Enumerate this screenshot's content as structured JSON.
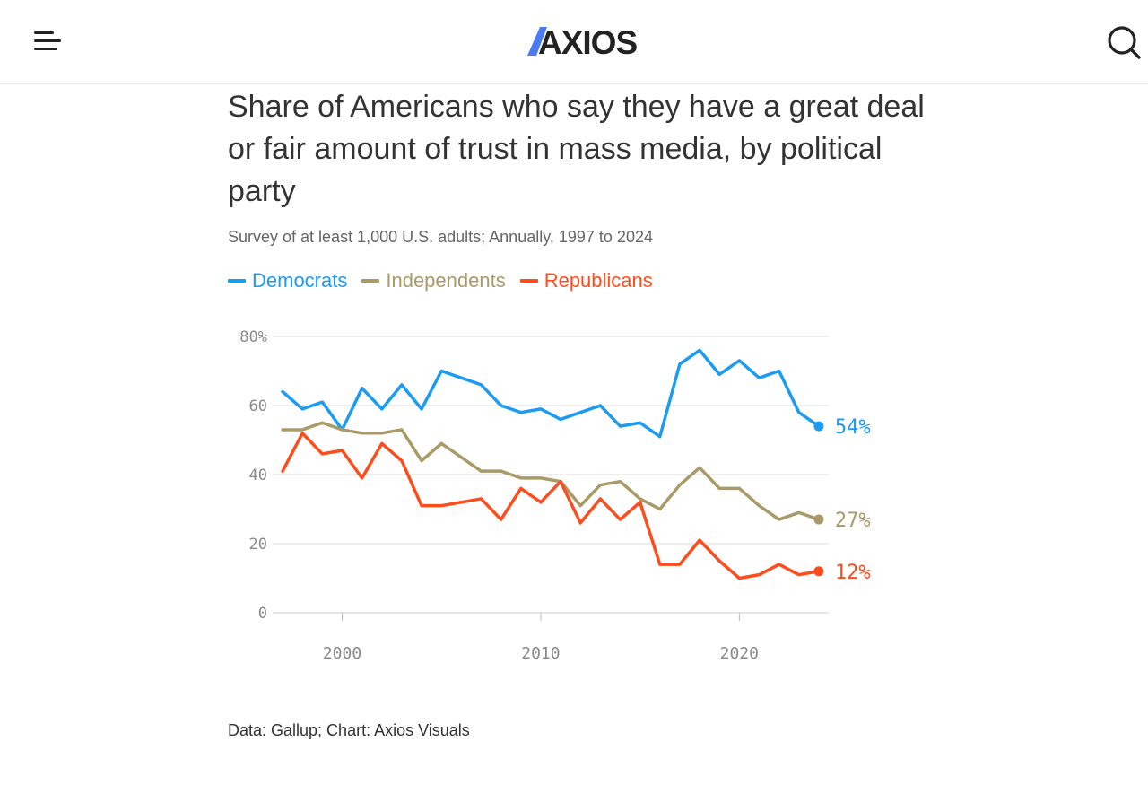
{
  "header": {
    "logo_text": "AXIOS",
    "menu_icon": "hamburger-menu-icon",
    "search_icon": "search-icon"
  },
  "colors": {
    "democrats": "#1b9cf2",
    "independents": "#a99a68",
    "republicans": "#fd4d1d",
    "grid": "#dddddd",
    "tick": "#8a8a8a",
    "logo_accent": "#4b7cf3"
  },
  "title": "Share of Americans who say they have a great deal or fair amount of trust in mass media, by political party",
  "subtitle": "Survey of at least 1,000 U.S. adults; Annually, 1997 to 2024",
  "source": "Data: Gallup; Chart: Axios Visuals",
  "chart_data": {
    "type": "line",
    "x": [
      1997,
      1998,
      1999,
      2000,
      2001,
      2002,
      2003,
      2004,
      2005,
      2007,
      2008,
      2009,
      2010,
      2011,
      2012,
      2013,
      2014,
      2015,
      2016,
      2017,
      2018,
      2019,
      2020,
      2021,
      2022,
      2023,
      2024
    ],
    "series": [
      {
        "name": "Democrats",
        "color": "#1b9cf2",
        "end_label": "54%",
        "values": [
          64,
          59,
          61,
          53,
          65,
          59,
          66,
          59,
          70,
          66,
          60,
          58,
          59,
          56,
          58,
          60,
          54,
          55,
          51,
          72,
          76,
          69,
          73,
          68,
          70,
          58,
          54
        ]
      },
      {
        "name": "Independents",
        "color": "#a99a68",
        "end_label": "27%",
        "values": [
          53,
          53,
          55,
          53,
          52,
          52,
          53,
          44,
          49,
          41,
          41,
          39,
          39,
          38,
          31,
          37,
          38,
          33,
          30,
          37,
          42,
          36,
          36,
          31,
          27,
          29,
          27
        ]
      },
      {
        "name": "Republicans",
        "color": "#fd4d1d",
        "end_label": "12%",
        "values": [
          41,
          52,
          46,
          47,
          39,
          49,
          44,
          31,
          31,
          33,
          27,
          36,
          32,
          38,
          26,
          33,
          27,
          32,
          14,
          14,
          21,
          15,
          10,
          11,
          14,
          11,
          12
        ]
      }
    ],
    "xlim": [
      1996.5,
      2024.5
    ],
    "ylim": [
      0,
      80
    ],
    "y_ticks": [
      0,
      20,
      40,
      60,
      80
    ],
    "y_tick_labels": [
      "0",
      "20",
      "40",
      "60",
      "80%"
    ],
    "x_ticks": [
      2000,
      2010,
      2020
    ],
    "x_tick_labels": [
      "2000",
      "2010",
      "2020"
    ],
    "grid": true,
    "legend_position": "top-left"
  }
}
